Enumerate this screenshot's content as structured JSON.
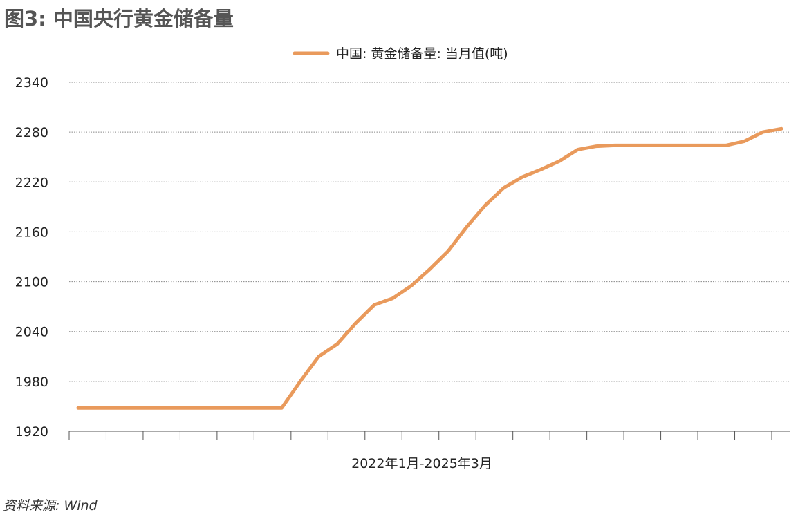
{
  "title": "图3: 中国央行黄金储备量",
  "source": "资料来源: Wind",
  "chart_data": {
    "type": "line",
    "xlabel": "2022年1月-2025年3月",
    "ylabel": "",
    "ylim": [
      1920,
      2340
    ],
    "yticks": [
      1920,
      1980,
      2040,
      2100,
      2160,
      2220,
      2280,
      2340
    ],
    "grid": "horizontal-dotted",
    "legend_position": "top-center",
    "series": [
      {
        "name": "中国: 黄金储备量: 当月值(吨)",
        "color": "#E99A5C",
        "x": [
          "2022-01",
          "2022-02",
          "2022-03",
          "2022-04",
          "2022-05",
          "2022-06",
          "2022-07",
          "2022-08",
          "2022-09",
          "2022-10",
          "2022-11",
          "2022-12",
          "2023-01",
          "2023-02",
          "2023-03",
          "2023-04",
          "2023-05",
          "2023-06",
          "2023-07",
          "2023-08",
          "2023-09",
          "2023-10",
          "2023-11",
          "2023-12",
          "2024-01",
          "2024-02",
          "2024-03",
          "2024-04",
          "2024-05",
          "2024-06",
          "2024-07",
          "2024-08",
          "2024-09",
          "2024-10",
          "2024-11",
          "2024-12",
          "2025-01",
          "2025-02",
          "2025-03"
        ],
        "values": [
          1948,
          1948,
          1948,
          1948,
          1948,
          1948,
          1948,
          1948,
          1948,
          1948,
          1948,
          1948,
          1980,
          2010,
          2025,
          2050,
          2072,
          2080,
          2095,
          2115,
          2137,
          2166,
          2192,
          2213,
          2226,
          2235,
          2245,
          2259,
          2263,
          2264,
          2264,
          2264,
          2264,
          2264,
          2264,
          2264,
          2269,
          2280,
          2284
        ]
      }
    ]
  }
}
